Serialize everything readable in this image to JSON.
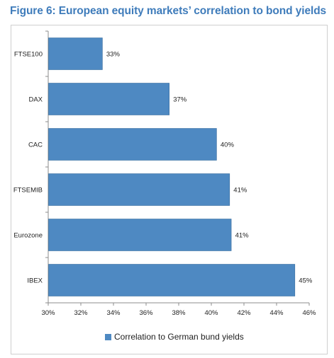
{
  "figure": {
    "title": "Figure 6: European equity markets’ correlation to bond yields"
  },
  "chart_data": {
    "type": "bar",
    "orientation": "horizontal",
    "categories": [
      "FTSE100",
      "DAX",
      "CAC",
      "FTSEMIB",
      "Eurozone",
      "IBEX"
    ],
    "series": [
      {
        "name": "Correlation to German bund yields",
        "values": [
          33.3,
          37.4,
          40.3,
          41.1,
          41.2,
          45.1
        ],
        "data_labels": [
          "33%",
          "37%",
          "40%",
          "41%",
          "41%",
          "45%"
        ],
        "color": "#4e89c2"
      }
    ],
    "xlim": [
      30,
      46
    ],
    "xticks": [
      30,
      32,
      34,
      36,
      38,
      40,
      42,
      44,
      46
    ],
    "xtick_labels": [
      "30%",
      "32%",
      "34%",
      "36%",
      "38%",
      "40%",
      "42%",
      "44%",
      "46%"
    ],
    "grid": false,
    "legend_position": "bottom"
  }
}
